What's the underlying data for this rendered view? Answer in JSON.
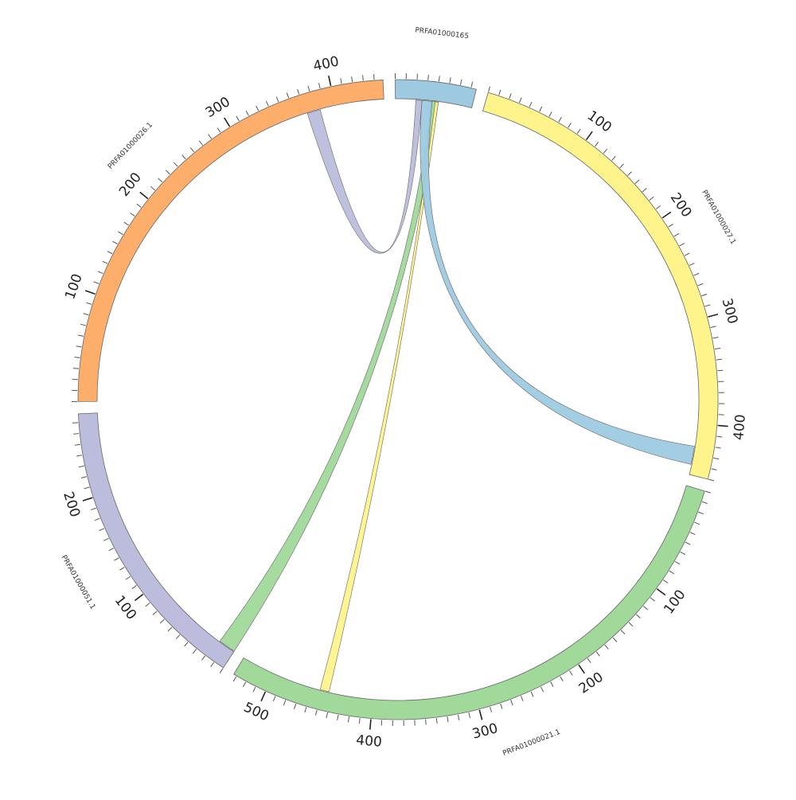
{
  "chart_data": {
    "type": "chord",
    "segments": [
      {
        "name": "PRFA01000165",
        "length": 75,
        "color": "#9ecae1",
        "tick_labels": []
      },
      {
        "name": "PRFA01000027.1",
        "length": 450,
        "color": "#fff38c",
        "tick_labels": [
          {
            "value": 100,
            "text": "100"
          },
          {
            "value": 200,
            "text": "200"
          },
          {
            "value": 300,
            "text": "300"
          },
          {
            "value": 400,
            "text": "400"
          }
        ]
      },
      {
        "name": "PRFA01000021.1",
        "length": 533,
        "color": "#a1d99b",
        "tick_labels": [
          {
            "value": 100,
            "text": "100"
          },
          {
            "value": 200,
            "text": "200"
          },
          {
            "value": 300,
            "text": "300"
          },
          {
            "value": 400,
            "text": "400"
          },
          {
            "value": 500,
            "text": "500"
          }
        ]
      },
      {
        "name": "PRFA01000051.1",
        "length": 278,
        "color": "#bcbddc",
        "tick_labels": [
          {
            "value": 100,
            "text": "100"
          },
          {
            "value": 200,
            "text": "200"
          }
        ]
      },
      {
        "name": "PRFA01000026.1",
        "length": 448,
        "color": "#fdae6b",
        "tick_labels": [
          {
            "value": 100,
            "text": "100"
          },
          {
            "value": 200,
            "text": "200"
          },
          {
            "value": 300,
            "text": "300"
          },
          {
            "value": 400,
            "text": "400"
          }
        ]
      }
    ],
    "links": [
      {
        "from": "PRFA01000165",
        "from_range": [
          20,
          26
        ],
        "to": "PRFA01000026.1",
        "to_range": [
          372,
          385
        ],
        "color": "#bcbddc"
      },
      {
        "from": "PRFA01000165",
        "from_range": [
          35,
          42
        ],
        "to": "PRFA01000051.1",
        "to_range": [
          0,
          17
        ],
        "color": "#a1d99b"
      },
      {
        "from": "PRFA01000165",
        "from_range": [
          39,
          42
        ],
        "to": "PRFA01000021.1",
        "to_range": [
          443,
          452
        ],
        "color": "#fff38c"
      },
      {
        "from": "PRFA01000165",
        "from_range": [
          26,
          36
        ],
        "to": "PRFA01000027.1",
        "to_range": [
          422,
          440
        ],
        "color": "#9ecae1"
      }
    ],
    "tick_style": {
      "minor_every": 10,
      "major_every": 100
    }
  }
}
